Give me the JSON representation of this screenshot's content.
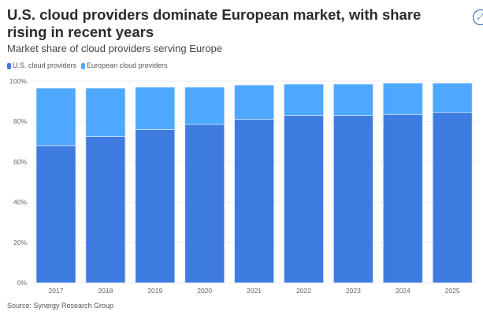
{
  "chart_data": {
    "type": "bar",
    "stacked": true,
    "title": "U.S. cloud providers dominate European market, with share rising in recent years",
    "subtitle": "Market share of cloud providers serving Europe",
    "categories": [
      "2017",
      "2018",
      "2019",
      "2020",
      "2021",
      "2022",
      "2023",
      "2024",
      "2025"
    ],
    "series": [
      {
        "name": "U.S. cloud providers",
        "color": "#3e7be0",
        "values": [
          68,
          72.5,
          76,
          78.5,
          81,
          83,
          83,
          83.5,
          84.5
        ]
      },
      {
        "name": "European cloud providers",
        "color": "#4ea8ff",
        "values": [
          28.5,
          24,
          21,
          18.5,
          17,
          15.5,
          15.5,
          15.5,
          14.5
        ]
      }
    ],
    "ylim": [
      0,
      100
    ],
    "yticks": [
      "0%",
      "20%",
      "40%",
      "60%",
      "80%",
      "100%"
    ],
    "grid": true,
    "legend": "top-left",
    "source": "Source: Synergy Research Group"
  },
  "icons": {
    "expand": "expand-icon"
  }
}
